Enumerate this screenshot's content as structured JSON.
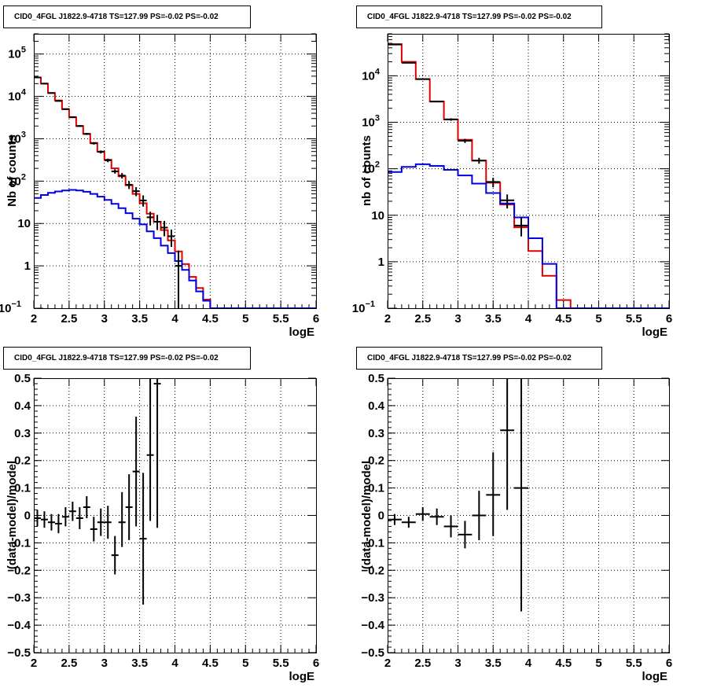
{
  "panels": [
    {
      "title": "CID0_4FGL J1822.9-4718 TS=127.99 PS=-0.02 PS=-0.02",
      "xlabel": "logE",
      "ylabel": "Nb of counts",
      "chart_data": {
        "type": "line",
        "title": "CID0_4FGL J1822.9-4718 TS=127.99 PS=-0.02 PS=-0.02",
        "xlabel": "logE",
        "ylabel": "Nb of counts",
        "xlim": [
          2,
          6
        ],
        "ylim": [
          0.1,
          300000
        ],
        "yscale": "log",
        "grid": true,
        "xticks": [
          "2",
          "2.5",
          "3",
          "3.5",
          "4",
          "4.5",
          "5",
          "5.5",
          "6"
        ],
        "yticks": [
          {
            "v": 0.1,
            "base": "10",
            "exp": "−1"
          },
          {
            "v": 1,
            "base": "1",
            "exp": ""
          },
          {
            "v": 10,
            "base": "10",
            "exp": ""
          },
          {
            "v": 100,
            "base": "10",
            "exp": "2"
          },
          {
            "v": 1000,
            "base": "10",
            "exp": "3"
          },
          {
            "v": 10000,
            "base": "10",
            "exp": "4"
          },
          {
            "v": 100000,
            "base": "10",
            "exp": "5"
          }
        ],
        "bin_edges": [
          2,
          2.1,
          2.2,
          2.3,
          2.4,
          2.5,
          2.6,
          2.7,
          2.8,
          2.9,
          3.0,
          3.1,
          3.2,
          3.3,
          3.4,
          3.5,
          3.6,
          3.7,
          3.8,
          3.9,
          4.0,
          4.1,
          4.2,
          4.3,
          4.4,
          4.5,
          4.6,
          4.7,
          4.8,
          4.9,
          5.0,
          5.1,
          5.2,
          5.3,
          5.4,
          5.5,
          5.6,
          5.7,
          5.8,
          5.9,
          6.0
        ],
        "series": [
          {
            "color": "#e00000",
            "kind": "step",
            "values": [
              28000,
              20000,
              12000,
              8000,
              5000,
              3200,
              2000,
              1300,
              800,
              500,
              320,
              200,
              130,
              80,
              50,
              30,
              17,
              11,
              7,
              4,
              2.2,
              1.1,
              0.55,
              0.3,
              0.16,
              0.1,
              0.1,
              0.1,
              0.1,
              0.1,
              0.1,
              0.1,
              0.1,
              0.1,
              0.1,
              0.1,
              0.1,
              0.1,
              0.1,
              0.1
            ]
          },
          {
            "color": "#0000e0",
            "kind": "step",
            "values": [
              40,
              47,
              53,
              57,
              60,
              62,
              60,
              56,
              50,
              43,
              36,
              29,
              23,
              17.5,
              13,
              9.5,
              6.5,
              4.5,
              3.0,
              2.0,
              1.3,
              0.8,
              0.45,
              0.25,
              0.15,
              0.1,
              0.1,
              0.1,
              0.1,
              0.1,
              0.1,
              0.1,
              0.1,
              0.1,
              0.1,
              0.1,
              0.1,
              0.1,
              0.1,
              0.1
            ]
          },
          {
            "color": "#000000",
            "kind": "points",
            "points": [
              {
                "x": 2.05,
                "y": 28000,
                "lo": 27500,
                "hi": 28500
              },
              {
                "x": 2.15,
                "y": 20000,
                "lo": 19600,
                "hi": 20400
              },
              {
                "x": 2.25,
                "y": 12000,
                "lo": 11700,
                "hi": 12300
              },
              {
                "x": 2.35,
                "y": 7800,
                "lo": 7600,
                "hi": 8000
              },
              {
                "x": 2.45,
                "y": 5000,
                "lo": 4850,
                "hi": 5150
              },
              {
                "x": 2.55,
                "y": 3250,
                "lo": 3140,
                "hi": 3360
              },
              {
                "x": 2.65,
                "y": 2000,
                "lo": 1910,
                "hi": 2090
              },
              {
                "x": 2.75,
                "y": 1300,
                "lo": 1230,
                "hi": 1370
              },
              {
                "x": 2.85,
                "y": 780,
                "lo": 730,
                "hi": 830
              },
              {
                "x": 2.95,
                "y": 490,
                "lo": 450,
                "hi": 530
              },
              {
                "x": 3.05,
                "y": 310,
                "lo": 280,
                "hi": 340
              },
              {
                "x": 3.15,
                "y": 170,
                "lo": 150,
                "hi": 190
              },
              {
                "x": 3.25,
                "y": 135,
                "lo": 115,
                "hi": 155
              },
              {
                "x": 3.35,
                "y": 82,
                "lo": 65,
                "hi": 100
              },
              {
                "x": 3.45,
                "y": 58,
                "lo": 44,
                "hi": 72
              },
              {
                "x": 3.55,
                "y": 35,
                "lo": 25,
                "hi": 46
              },
              {
                "x": 3.65,
                "y": 14,
                "lo": 9,
                "hi": 19
              },
              {
                "x": 3.75,
                "y": 11,
                "lo": 7,
                "hi": 16
              },
              {
                "x": 3.85,
                "y": 8,
                "lo": 5,
                "hi": 11.5
              },
              {
                "x": 3.95,
                "y": 5,
                "lo": 2.8,
                "hi": 7.2
              },
              {
                "x": 4.05,
                "y": 1,
                "lo": 0.1,
                "hi": 2.3
              }
            ]
          }
        ]
      }
    },
    {
      "title": "CID0_4FGL J1822.9-4718 TS=127.99 PS=-0.02 PS=-0.02",
      "xlabel": "logE",
      "ylabel": "nb of counts",
      "chart_data": {
        "type": "line",
        "title": "CID0_4FGL J1822.9-4718 TS=127.99 PS=-0.02 PS=-0.02",
        "xlabel": "logE",
        "ylabel": "nb of counts",
        "xlim": [
          2,
          6
        ],
        "ylim": [
          0.1,
          80000
        ],
        "yscale": "log",
        "grid": true,
        "xticks": [
          "2",
          "2.5",
          "3",
          "3.5",
          "4",
          "4.5",
          "5",
          "5.5",
          "6"
        ],
        "yticks": [
          {
            "v": 0.1,
            "base": "10",
            "exp": "−1"
          },
          {
            "v": 1,
            "base": "1",
            "exp": ""
          },
          {
            "v": 10,
            "base": "10",
            "exp": ""
          },
          {
            "v": 100,
            "base": "10",
            "exp": "2"
          },
          {
            "v": 1000,
            "base": "10",
            "exp": "3"
          },
          {
            "v": 10000,
            "base": "10",
            "exp": "4"
          }
        ],
        "bin_edges": [
          2,
          2.2,
          2.4,
          2.6,
          2.8,
          3.0,
          3.2,
          3.4,
          3.6,
          3.8,
          4.0,
          4.2,
          4.4,
          4.6,
          4.8,
          5.0,
          5.2,
          5.4,
          5.6,
          5.8,
          6.0
        ],
        "series": [
          {
            "color": "#e00000",
            "kind": "step",
            "values": [
              48000,
              20000,
              8500,
              2800,
              1150,
              420,
              150,
              50,
              17,
              5.5,
              1.7,
              0.5,
              0.15,
              0.1,
              0.1,
              0.1,
              0.1,
              0.1,
              0.1,
              0.1
            ]
          },
          {
            "color": "#0000e0",
            "kind": "step",
            "values": [
              85,
              110,
              125,
              115,
              95,
              72,
              48,
              30,
              18,
              9,
              3.2,
              0.9,
              0.1,
              0.1,
              0.1,
              0.1,
              0.1,
              0.1,
              0.1,
              0.1
            ]
          },
          {
            "color": "#000000",
            "kind": "points",
            "points": [
              {
                "x": 2.1,
                "y": 47000,
                "lo": 46600,
                "hi": 47400
              },
              {
                "x": 2.3,
                "y": 19000,
                "lo": 18700,
                "hi": 19300
              },
              {
                "x": 2.5,
                "y": 8500,
                "lo": 8300,
                "hi": 8700
              },
              {
                "x": 2.7,
                "y": 2800,
                "lo": 2700,
                "hi": 2900
              },
              {
                "x": 2.9,
                "y": 1150,
                "lo": 1080,
                "hi": 1220
              },
              {
                "x": 3.1,
                "y": 400,
                "lo": 360,
                "hi": 440
              },
              {
                "x": 3.3,
                "y": 150,
                "lo": 128,
                "hi": 172
              },
              {
                "x": 3.5,
                "y": 52,
                "lo": 40,
                "hi": 64
              },
              {
                "x": 3.7,
                "y": 21,
                "lo": 14,
                "hi": 28
              },
              {
                "x": 3.9,
                "y": 6,
                "lo": 3.5,
                "hi": 9
              }
            ]
          }
        ]
      }
    },
    {
      "title": "CID0_4FGL J1822.9-4718 TS=127.99 PS=-0.02 PS=-0.02",
      "xlabel": "logE",
      "ylabel": "(data-model)/model",
      "chart_data": {
        "type": "scatter",
        "title": "CID0_4FGL J1822.9-4718 TS=127.99 PS=-0.02 PS=-0.02",
        "xlabel": "logE",
        "ylabel": "(data-model)/model",
        "xlim": [
          2,
          6
        ],
        "ylim": [
          -0.5,
          0.5
        ],
        "yscale": "linear",
        "grid": true,
        "xticks": [
          "2",
          "2.5",
          "3",
          "3.5",
          "4",
          "4.5",
          "5",
          "5.5",
          "6"
        ],
        "yticks_lin": [
          "−0.5",
          "−0.4",
          "−0.3",
          "−0.2",
          "−0.1",
          "0",
          "0.1",
          "0.2",
          "0.3",
          "0.4",
          "0.5"
        ],
        "series": [
          {
            "color": "#000000",
            "kind": "points",
            "halfwidth": 0.05,
            "points": [
              {
                "x": 2.05,
                "y": -0.01,
                "lo": -0.04,
                "hi": 0.02
              },
              {
                "x": 2.15,
                "y": -0.015,
                "lo": -0.045,
                "hi": 0.015
              },
              {
                "x": 2.25,
                "y": -0.025,
                "lo": -0.055,
                "hi": 0.005
              },
              {
                "x": 2.35,
                "y": -0.03,
                "lo": -0.065,
                "hi": 0.005
              },
              {
                "x": 2.45,
                "y": -0.005,
                "lo": -0.04,
                "hi": 0.03
              },
              {
                "x": 2.55,
                "y": 0.015,
                "lo": -0.02,
                "hi": 0.05
              },
              {
                "x": 2.65,
                "y": -0.01,
                "lo": -0.05,
                "hi": 0.03
              },
              {
                "x": 2.75,
                "y": 0.03,
                "lo": -0.01,
                "hi": 0.07
              },
              {
                "x": 2.85,
                "y": -0.05,
                "lo": -0.095,
                "hi": -0.005
              },
              {
                "x": 2.95,
                "y": -0.025,
                "lo": -0.075,
                "hi": 0.025
              },
              {
                "x": 3.05,
                "y": -0.025,
                "lo": -0.085,
                "hi": 0.035
              },
              {
                "x": 3.15,
                "y": -0.145,
                "lo": -0.215,
                "hi": -0.075
              },
              {
                "x": 3.25,
                "y": -0.025,
                "lo": -0.115,
                "hi": 0.085
              },
              {
                "x": 3.35,
                "y": 0.03,
                "lo": -0.09,
                "hi": 0.15
              },
              {
                "x": 3.45,
                "y": 0.16,
                "lo": -0.04,
                "hi": 0.36
              },
              {
                "x": 3.55,
                "y": -0.085,
                "lo": -0.325,
                "hi": 0.155
              },
              {
                "x": 3.65,
                "y": 0.22,
                "lo": -0.02,
                "hi": 0.5
              },
              {
                "x": 3.75,
                "y": 0.48,
                "lo": -0.045,
                "hi": 0.5
              }
            ]
          }
        ]
      }
    },
    {
      "title": "CID0_4FGL J1822.9-4718 TS=127.99 PS=-0.02 PS=-0.02",
      "xlabel": "logE",
      "ylabel": "(data-model)/model",
      "chart_data": {
        "type": "scatter",
        "title": "CID0_4FGL J1822.9-4718 TS=127.99 PS=-0.02 PS=-0.02",
        "xlabel": "logE",
        "ylabel": "(data-model)/model",
        "xlim": [
          2,
          6
        ],
        "ylim": [
          -0.5,
          0.5
        ],
        "yscale": "linear",
        "grid": true,
        "xticks": [
          "2",
          "2.5",
          "3",
          "3.5",
          "4",
          "4.5",
          "5",
          "5.5",
          "6"
        ],
        "yticks_lin": [
          "−0.5",
          "−0.4",
          "−0.3",
          "−0.2",
          "−0.1",
          "0",
          "0.1",
          "0.2",
          "0.3",
          "0.4",
          "0.5"
        ],
        "series": [
          {
            "color": "#000000",
            "kind": "points",
            "halfwidth": 0.1,
            "points": [
              {
                "x": 2.1,
                "y": -0.015,
                "lo": -0.035,
                "hi": 0.005
              },
              {
                "x": 2.3,
                "y": -0.025,
                "lo": -0.045,
                "hi": -0.005
              },
              {
                "x": 2.5,
                "y": 0.005,
                "lo": -0.02,
                "hi": 0.03
              },
              {
                "x": 2.7,
                "y": -0.005,
                "lo": -0.035,
                "hi": 0.025
              },
              {
                "x": 2.9,
                "y": -0.04,
                "lo": -0.08,
                "hi": 0.0
              },
              {
                "x": 3.1,
                "y": -0.07,
                "lo": -0.12,
                "hi": -0.02
              },
              {
                "x": 3.3,
                "y": 0.0,
                "lo": -0.09,
                "hi": 0.09
              },
              {
                "x": 3.5,
                "y": 0.075,
                "lo": -0.075,
                "hi": 0.23
              },
              {
                "x": 3.7,
                "y": 0.31,
                "lo": 0.02,
                "hi": 0.5
              },
              {
                "x": 3.9,
                "y": 0.1,
                "lo": -0.35,
                "hi": 0.5
              }
            ]
          }
        ]
      }
    }
  ]
}
